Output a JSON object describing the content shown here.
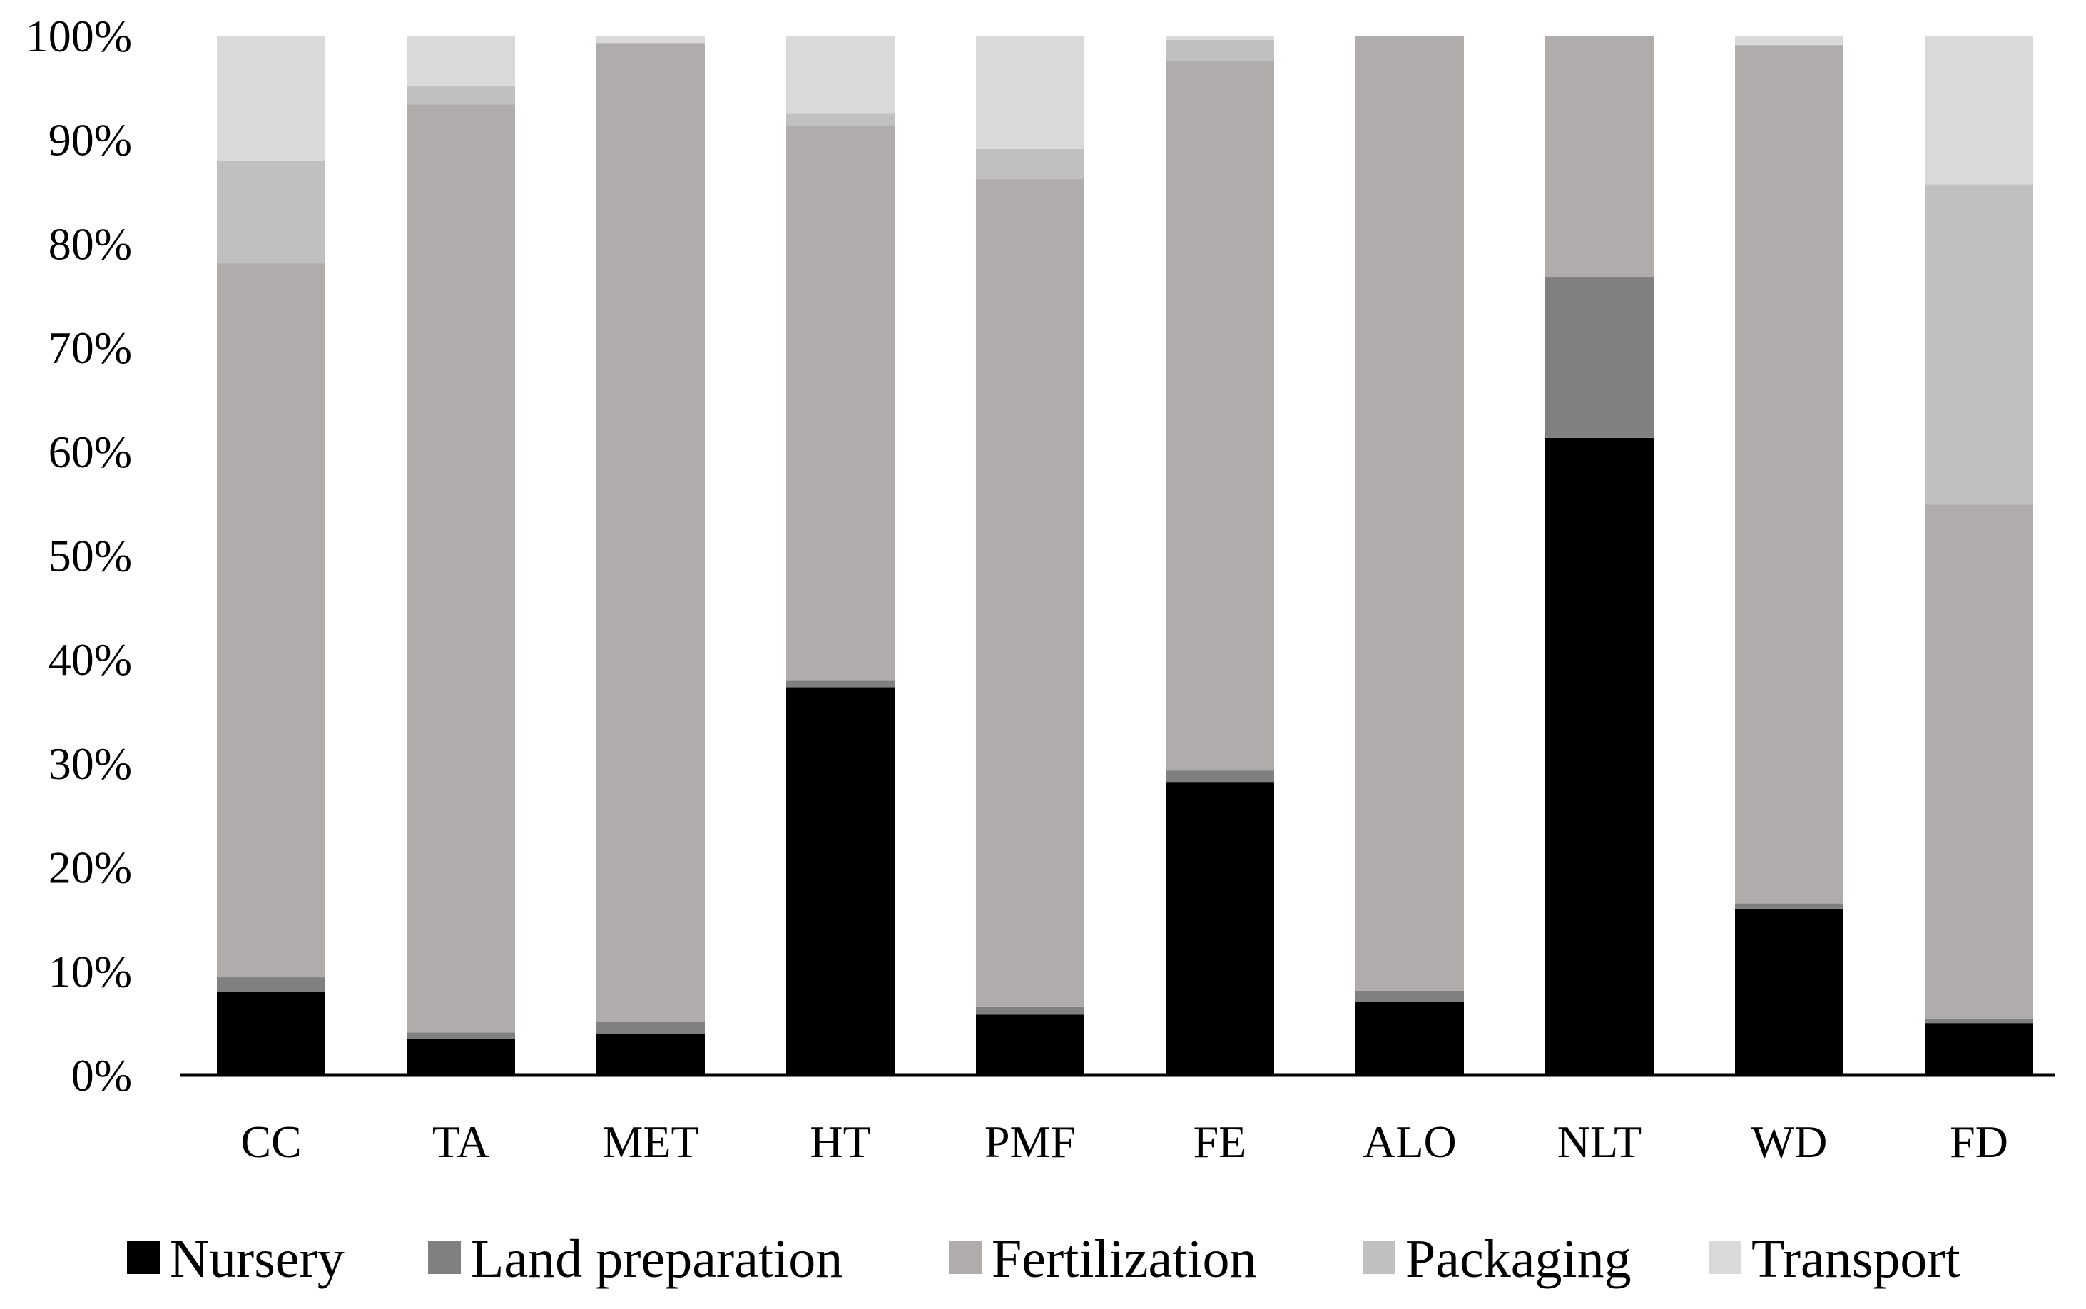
{
  "chart_data": {
    "type": "bar",
    "stacked": true,
    "categories": [
      "CC",
      "TA",
      "MET",
      "HT",
      "PMF",
      "FE",
      "ALO",
      "NLT",
      "WD",
      "FD"
    ],
    "series": [
      {
        "name": "Nursery",
        "color": "#000000",
        "values": [
          8.0,
          3.5,
          4.0,
          37.3,
          5.8,
          28.2,
          7.0,
          61.3,
          16.0,
          5.0
        ]
      },
      {
        "name": "Land preparation",
        "color": "#808080",
        "values": [
          1.4,
          0.6,
          1.1,
          0.7,
          0.8,
          1.1,
          1.1,
          15.5,
          0.5,
          0.4
        ]
      },
      {
        "name": "Fertilization",
        "color": "#afacab",
        "values": [
          68.7,
          89.3,
          94.2,
          53.4,
          79.6,
          68.3,
          91.9,
          23.2,
          82.6,
          49.5
        ]
      },
      {
        "name": "Packaging",
        "color": "#c0c0c0",
        "values": [
          9.9,
          1.8,
          0.0,
          1.1,
          2.9,
          2.0,
          0.0,
          0.0,
          0.0,
          30.8
        ]
      },
      {
        "name": "Transport",
        "color": "#d9d9d9",
        "values": [
          12.0,
          4.8,
          0.7,
          7.5,
          10.9,
          0.4,
          0.0,
          0.0,
          0.9,
          14.3
        ]
      }
    ],
    "ylim": [
      0,
      100
    ],
    "yticks": [
      "0%",
      "10%",
      "20%",
      "30%",
      "40%",
      "50%",
      "60%",
      "70%",
      "80%",
      "90%",
      "100%"
    ],
    "grid": false,
    "legend_position": "bottom"
  }
}
